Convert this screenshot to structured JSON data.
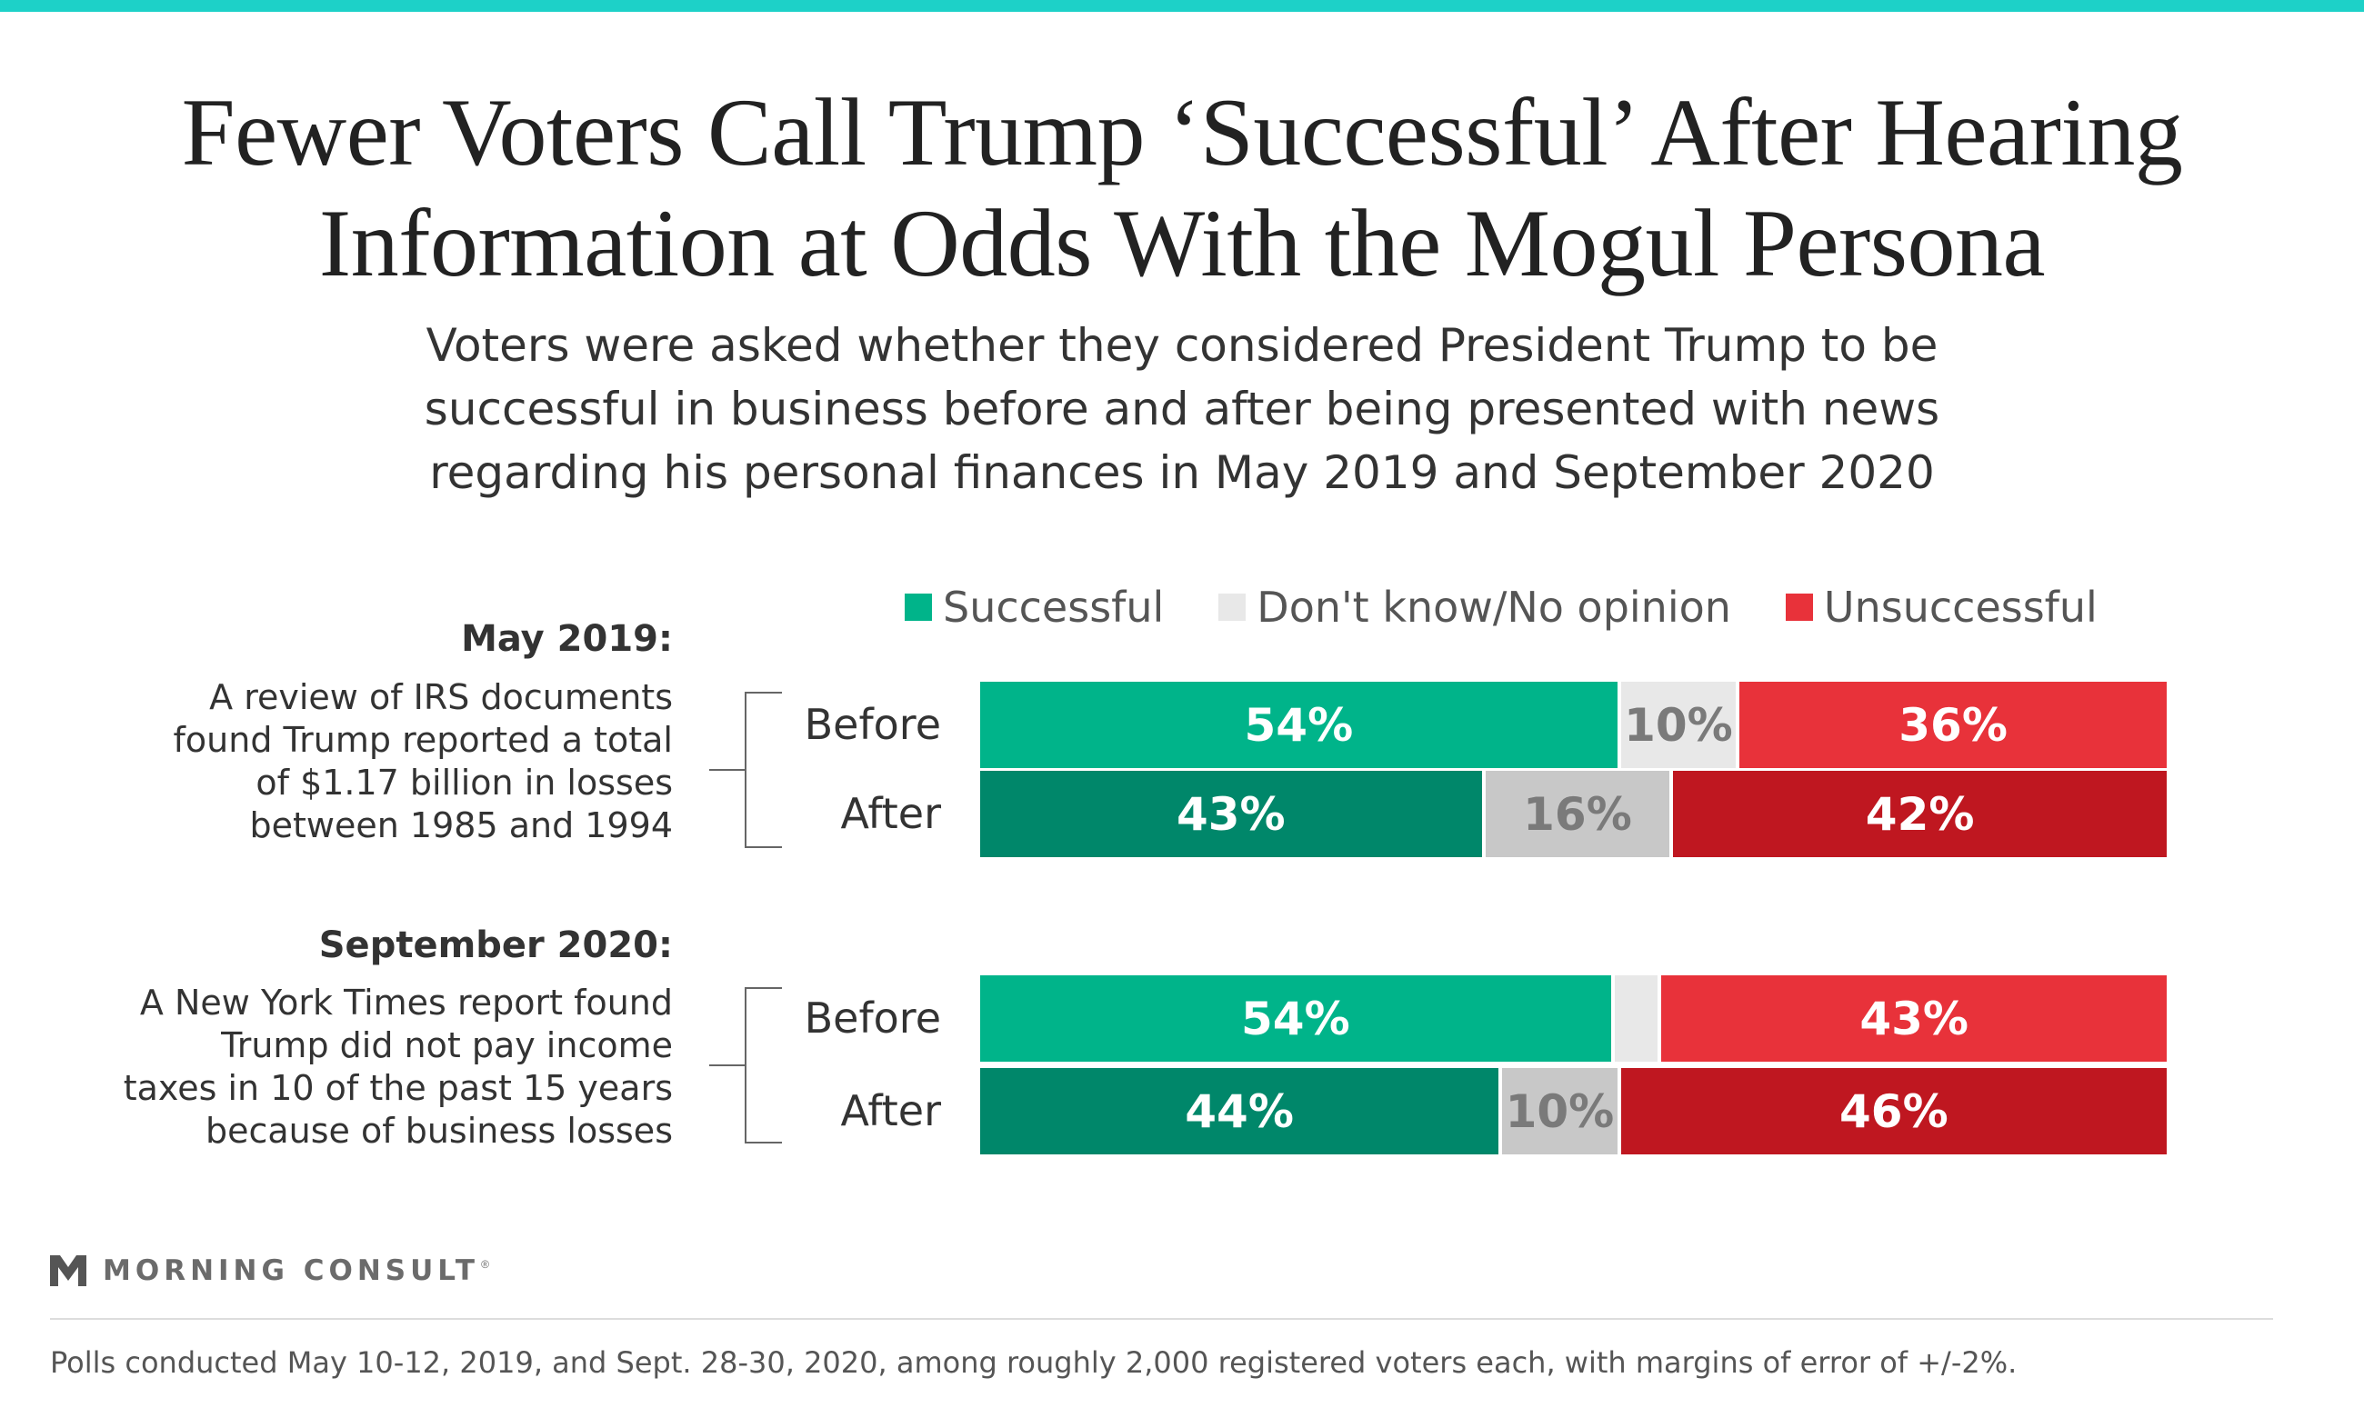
{
  "title_line1": "Fewer Voters Call Trump ‘Successful’ After Hearing",
  "title_line2": "Information at Odds With the Mogul Persona",
  "subtitle_line1": "Voters were asked whether they considered President Trump to be",
  "subtitle_line2": "successful in business before and after being presented with news",
  "subtitle_line3": "regarding his personal finances in May 2019 and September 2020",
  "colors": {
    "accent_stripe": "#1dd1c8",
    "successful_before": "#00b48a",
    "successful_after": "#00876a",
    "dontknow_before": "#e8e8e8",
    "dontknow_after": "#c8c8c8",
    "unsuccessful_before": "#e8323a",
    "unsuccessful_after": "#bf1720"
  },
  "brand": {
    "name": "MORNING CONSULT",
    "trademark": "®"
  },
  "footnote": "Polls conducted May 10-12, 2019, and Sept. 28-30, 2020, among roughly 2,000 registered voters each, with margins of error of +/-2%.",
  "chart_data": {
    "type": "bar",
    "orientation": "horizontal",
    "stacked": true,
    "normalized": true,
    "legend": {
      "position": "top",
      "entries": [
        "Successful",
        "Don't know/No opinion",
        "Unsuccessful"
      ]
    },
    "groups": [
      {
        "title": "May 2019:",
        "description": [
          "A review of IRS documents",
          "found Trump reported a total",
          "of $1.17 billion in losses",
          "between 1985 and 1994"
        ],
        "rows": [
          {
            "label": "Before",
            "successful": 54,
            "dontknow": 10,
            "unsuccessful": 36,
            "labels": {
              "successful": "54%",
              "dontknow": "10%",
              "unsuccessful": "36%"
            }
          },
          {
            "label": "After",
            "successful": 43,
            "dontknow": 16,
            "unsuccessful": 42,
            "labels": {
              "successful": "43%",
              "dontknow": "16%",
              "unsuccessful": "42%"
            }
          }
        ]
      },
      {
        "title": "September 2020:",
        "description": [
          "A New York Times report found",
          "Trump did not pay income",
          "taxes in 10 of the past 15 years",
          "because of business losses"
        ],
        "rows": [
          {
            "label": "Before",
            "successful": 54,
            "dontknow": 4,
            "unsuccessful": 43,
            "labels": {
              "successful": "54%",
              "dontknow": "",
              "unsuccessful": "43%"
            }
          },
          {
            "label": "After",
            "successful": 44,
            "dontknow": 10,
            "unsuccessful": 46,
            "labels": {
              "successful": "44%",
              "dontknow": "10%",
              "unsuccessful": "46%"
            }
          }
        ]
      }
    ]
  }
}
